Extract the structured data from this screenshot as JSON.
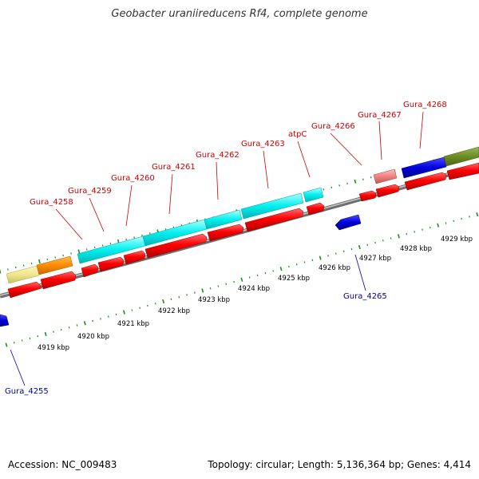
{
  "title": "Geobacter uraniireducens Rf4, complete genome",
  "footer": {
    "accession": "Accession: NC_009483",
    "summary": "Topology: circular; Length: 5,136,364 bp; Genes: 4,414"
  },
  "colors": {
    "cds": "#ff0000",
    "cyan_block": "#00ffff",
    "blue_block": "#0000dd",
    "olive_block": "#6b8e23",
    "pale_yellow": "#f0e68c",
    "orange": "#ff8c00",
    "pink": "#f08080",
    "backbone": "#8f8f8f",
    "tick": "#1a8f1a",
    "label_red": "#cc0000",
    "label_blue": "#000099"
  },
  "scale_ticks": [
    "4919 kbp",
    "4920 kbp",
    "4921 kbp",
    "4922 kbp",
    "4923 kbp",
    "4924 kbp",
    "4925 kbp",
    "4926 kbp",
    "4927 kbp",
    "4928 kbp",
    "4929 kbp"
  ],
  "upper_labels": [
    "Gura_4258",
    "Gura_4259",
    "Gura_4260",
    "Gura_4261",
    "Gura_4262",
    "Gura_4263",
    "atpC",
    "Gura_4266",
    "Gura_4267",
    "Gura_4268"
  ],
  "lower_labels": [
    "Gura_4265",
    "Gura_4255"
  ]
}
